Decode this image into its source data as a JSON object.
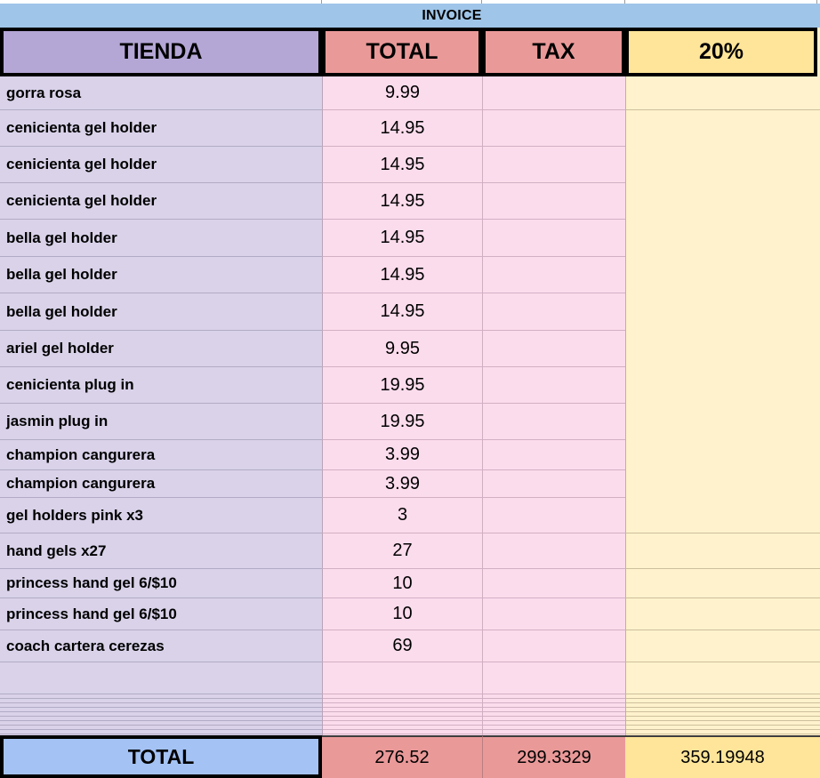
{
  "title": "INVOICE",
  "header": {
    "columns": [
      "TIENDA",
      "TOTAL",
      "TAX",
      "20%"
    ]
  },
  "rows": [
    {
      "item": "gorra rosa",
      "total": "9.99",
      "tax": "",
      "pct": ""
    },
    {
      "item": "cenicienta gel holder",
      "total": "14.95",
      "tax": "",
      "pct": ""
    },
    {
      "item": "cenicienta gel holder",
      "total": "14.95",
      "tax": "",
      "pct": ""
    },
    {
      "item": "cenicienta gel holder",
      "total": "14.95",
      "tax": "",
      "pct": ""
    },
    {
      "item": "bella gel holder",
      "total": "14.95",
      "tax": "",
      "pct": ""
    },
    {
      "item": "bella gel holder",
      "total": "14.95",
      "tax": "",
      "pct": ""
    },
    {
      "item": "bella gel holder",
      "total": "14.95",
      "tax": "",
      "pct": ""
    },
    {
      "item": "ariel gel holder",
      "total": "9.95",
      "tax": "",
      "pct": ""
    },
    {
      "item": "cenicienta plug in",
      "total": "19.95",
      "tax": "",
      "pct": ""
    },
    {
      "item": "jasmin plug in",
      "total": "19.95",
      "tax": "",
      "pct": ""
    },
    {
      "item": "champion cangurera",
      "total": "3.99",
      "tax": "",
      "pct": ""
    },
    {
      "item": "champion cangurera",
      "total": "3.99",
      "tax": "",
      "pct": ""
    },
    {
      "item": "gel holders pink x3",
      "total": "3",
      "tax": "",
      "pct": ""
    },
    {
      "item": "hand gels x27",
      "total": "27",
      "tax": "",
      "pct": ""
    },
    {
      "item": "princess hand gel 6/$10",
      "total": "10",
      "tax": "",
      "pct": ""
    },
    {
      "item": "princess hand gel 6/$10",
      "total": "10",
      "tax": "",
      "pct": ""
    },
    {
      "item": "coach cartera cerezas",
      "total": "69",
      "tax": "",
      "pct": ""
    }
  ],
  "footer": {
    "label": "TOTAL",
    "total": "276.52",
    "tax": "299.3329",
    "pct": "359.19948"
  },
  "colors": {
    "invoice_bar": "#9fc5e8",
    "header_item": "#b4a7d6",
    "header_total": "#ea9999",
    "header_tax": "#ea9999",
    "header_pct": "#ffe599",
    "row_item": "#d9d2e9",
    "row_value": "#fbdcec",
    "row_pct": "#fff2cc",
    "footer_label": "#a4c2f4",
    "footer_value": "#ea9999",
    "footer_pct": "#ffe599"
  }
}
